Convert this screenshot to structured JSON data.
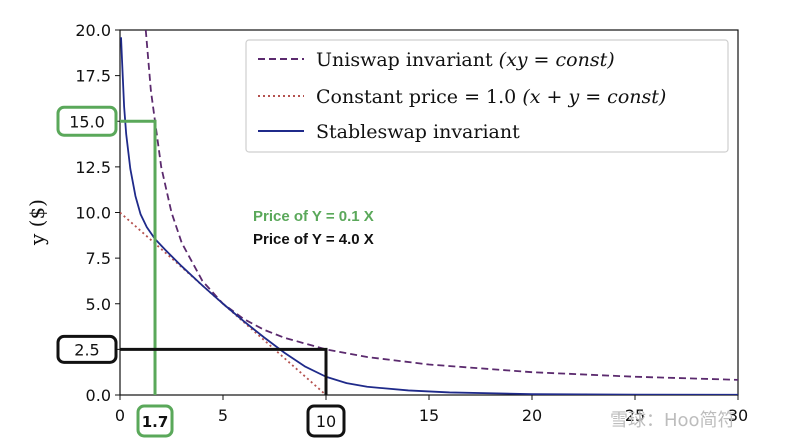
{
  "chart_data": {
    "type": "line",
    "xlabel": "",
    "ylabel": "y ($)",
    "xlim": [
      0,
      30
    ],
    "ylim": [
      0,
      20
    ],
    "x_ticks": [
      "0",
      "5",
      "10",
      "15",
      "20",
      "25",
      "30"
    ],
    "y_ticks": [
      "0.0",
      "2.5",
      "5.0",
      "7.5",
      "10.0",
      "12.5",
      "15.0",
      "17.5",
      "20.0"
    ],
    "grid": false,
    "legend_position": "top-right",
    "series": [
      {
        "name": "Uniswap invariant",
        "name_math": "(xy = const)",
        "style": "dashed",
        "color": "#5b2a6e",
        "x": [
          1.25,
          1.5,
          2,
          2.5,
          3,
          4,
          5,
          6,
          7,
          8,
          10,
          12,
          15,
          20,
          25,
          30
        ],
        "y": [
          20.0,
          16.67,
          12.5,
          10.0,
          8.33,
          6.25,
          5.0,
          4.17,
          3.57,
          3.13,
          2.5,
          2.08,
          1.67,
          1.25,
          1.0,
          0.83
        ]
      },
      {
        "name": "Constant price = 1.0",
        "name_math": "(x + y = const)",
        "style": "dotted",
        "color": "#b5524f",
        "x": [
          0,
          2,
          4,
          6,
          8,
          10
        ],
        "y": [
          10.0,
          8.0,
          6.0,
          4.0,
          2.0,
          0.0
        ]
      },
      {
        "name": "Stableswap invariant",
        "style": "solid",
        "color": "#1f2a8a",
        "x": [
          0.05,
          0.1,
          0.2,
          0.3,
          0.5,
          0.75,
          1.0,
          1.3,
          1.7,
          2.2,
          3,
          4,
          5,
          6,
          7,
          8,
          9,
          10,
          11,
          12,
          14,
          16,
          20,
          25,
          30
        ],
        "y": [
          19.6,
          18.3,
          15.8,
          14.3,
          12.4,
          10.9,
          9.9,
          9.2,
          8.55,
          7.95,
          7.05,
          6.0,
          5.0,
          4.05,
          3.15,
          2.3,
          1.55,
          1.0,
          0.65,
          0.45,
          0.25,
          0.14,
          0.05,
          0.02,
          0.01
        ]
      }
    ],
    "annotations": {
      "price_green": "Price of Y = 0.1 X",
      "price_black": "Price of Y = 4.0 X",
      "green_x_label": "1.7",
      "green_y_label": "15.0",
      "black_x_label": "10",
      "black_y_label": "2.5",
      "green_color": "#5aa85a",
      "black_color": "#111111"
    },
    "watermark": "雪球：Hoo简符"
  }
}
